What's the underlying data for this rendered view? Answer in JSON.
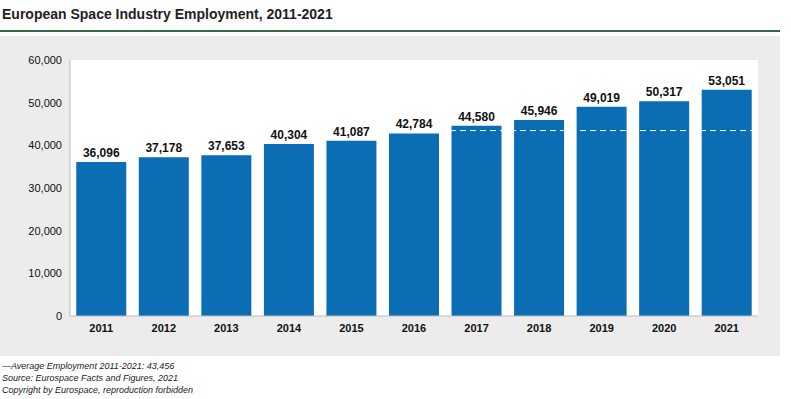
{
  "chart_data": {
    "type": "bar",
    "title": "European Space Industry Employment, 2011-2021",
    "categories": [
      "2011",
      "2012",
      "2013",
      "2014",
      "2015",
      "2016",
      "2017",
      "2018",
      "2019",
      "2020",
      "2021"
    ],
    "values": [
      36096,
      37178,
      37653,
      40304,
      41087,
      42784,
      44580,
      45946,
      49019,
      50317,
      53051
    ],
    "value_labels": [
      "36,096",
      "37,178",
      "37,653",
      "40,304",
      "41,087",
      "42,784",
      "44,580",
      "45,946",
      "49,019",
      "50,317",
      "53,051"
    ],
    "data_labels": true,
    "color": "#0b6db3",
    "ylim": [
      0,
      60000
    ],
    "yticks": [
      0,
      {
        "value": 10000,
        "label": "10,000"
      },
      {
        "value": 20000,
        "label": "20,000"
      },
      {
        "value": 30000,
        "label": "30,000"
      },
      {
        "value": 40000,
        "label": "40,000"
      },
      {
        "value": 50000,
        "label": "50,000"
      },
      {
        "value": 60000,
        "label": "60,000"
      }
    ],
    "grid": false,
    "average": {
      "value": 43456,
      "label": "—Average Employment 2011-2021: 43,456"
    },
    "source": "Source: Eurospace Facts and Figures, 2021",
    "copyright": "Copyright by Eurospace, reproduction forbidden"
  }
}
